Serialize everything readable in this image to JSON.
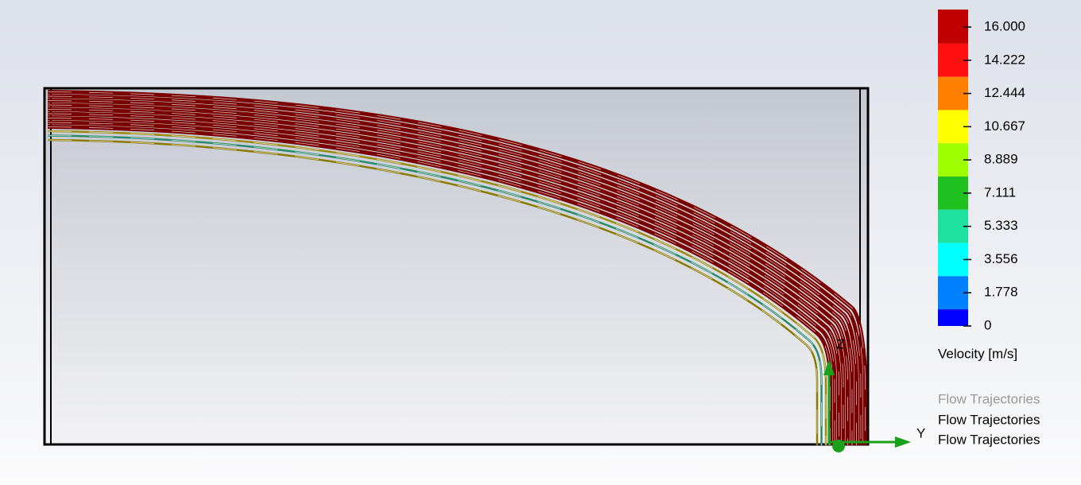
{
  "legend": {
    "ticks": [
      "16.000",
      "14.222",
      "12.444",
      "10.667",
      "8.889",
      "7.111",
      "5.333",
      "3.556",
      "1.778",
      "0"
    ],
    "title": "Velocity [m/s]"
  },
  "triad": {
    "z_label": "Z",
    "y_label": "Y"
  },
  "labels": [
    "Flow Trajectories",
    "Flow Trajectories",
    "Flow Trajectories"
  ]
}
